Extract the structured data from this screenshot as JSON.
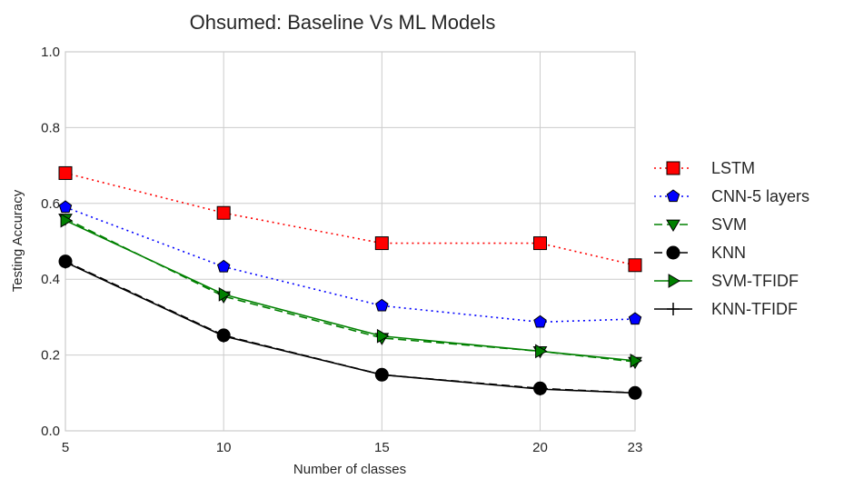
{
  "chart_data": {
    "type": "line",
    "title": "Ohsumed: Baseline Vs ML Models",
    "xlabel": "Number of classes",
    "ylabel": "Testing Accuracy",
    "x": [
      5,
      10,
      15,
      20,
      23
    ],
    "xlim": [
      5,
      23
    ],
    "ylim": [
      0.0,
      1.0
    ],
    "xticks": [
      "5",
      "10",
      "15",
      "20",
      "23"
    ],
    "yticks": [
      "0.0",
      "0.2",
      "0.4",
      "0.6",
      "0.8",
      "1.0"
    ],
    "grid": true,
    "legend_position": "right, outside",
    "series": [
      {
        "name": "LSTM",
        "values": [
          0.68,
          0.575,
          0.495,
          0.495,
          0.437
        ],
        "color": "#ff0000",
        "line": "dotted",
        "marker": "square"
      },
      {
        "name": "CNN-5 layers",
        "values": [
          0.59,
          0.433,
          0.33,
          0.287,
          0.295
        ],
        "color": "#0000ff",
        "line": "dotted",
        "marker": "pentagon"
      },
      {
        "name": "SVM",
        "values": [
          0.56,
          0.355,
          0.245,
          0.21,
          0.182
        ],
        "color": "#008000",
        "line": "dashed",
        "marker": "triangle-down"
      },
      {
        "name": "KNN",
        "values": [
          0.447,
          0.252,
          0.148,
          0.112,
          0.1
        ],
        "color": "#000000",
        "line": "dashed",
        "marker": "circle"
      },
      {
        "name": "SVM-TFIDF",
        "values": [
          0.555,
          0.36,
          0.25,
          0.21,
          0.185
        ],
        "color": "#008000",
        "line": "solid",
        "marker": "triangle-right"
      },
      {
        "name": "KNN-TFIDF",
        "values": [
          0.445,
          0.25,
          0.148,
          0.11,
          0.1
        ],
        "color": "#000000",
        "line": "solid",
        "marker": "plus"
      }
    ]
  }
}
